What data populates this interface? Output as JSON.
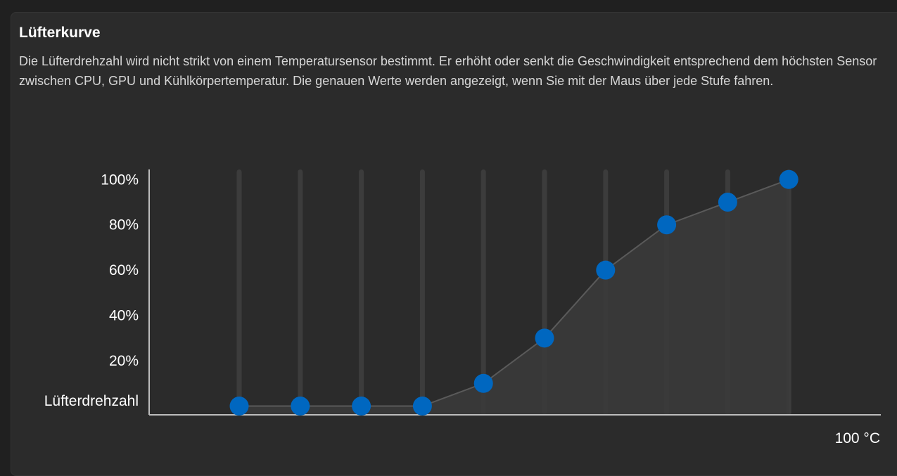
{
  "card": {
    "title": "Lüfterkurve",
    "description": "Die Lüfterdrehzahl wird nicht strikt von einem Temperatursensor bestimmt. Er erhöht oder senkt die Geschwindigkeit entsprechend dem höchsten Sensor zwischen CPU, GPU und Kühlkörpertemperatur. Die genauen Werte werden angezeigt, wenn Sie mit der Maus über jede Stufe fahren."
  },
  "chart_data": {
    "type": "line",
    "ylabel": "Lüfterdrehzahl",
    "x_end_label": "100 °C",
    "y_ticks": [
      "20%",
      "40%",
      "60%",
      "80%",
      "100%"
    ],
    "y_tick_values": [
      20,
      40,
      60,
      80,
      100
    ],
    "ylim": [
      -4.5,
      103.5
    ],
    "xlim": [
      0,
      1
    ],
    "values": [
      0,
      0,
      0,
      0,
      10,
      30,
      60,
      80,
      90,
      100
    ],
    "colors": {
      "marker": "#0067c0",
      "track": "#3c3c3c",
      "line": "#5a5a5a",
      "fill": "#3a3a3a",
      "axis": "#bdbdbd"
    }
  }
}
